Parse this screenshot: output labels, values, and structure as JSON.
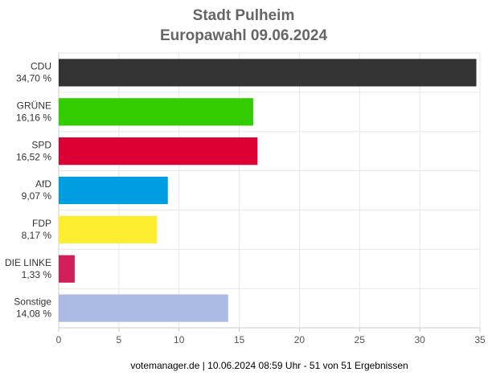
{
  "chart_data": {
    "type": "bar",
    "orientation": "horizontal",
    "title": "Stadt Pulheim",
    "subtitle": "Europawahl 09.06.2024",
    "categories": [
      "CDU",
      "GRÜNE",
      "SPD",
      "AfD",
      "FDP",
      "DIE LINKE",
      "Sonstige"
    ],
    "values": [
      34.7,
      16.16,
      16.52,
      9.07,
      8.17,
      1.33,
      14.08
    ],
    "value_labels": [
      "34,70 %",
      "16,16 %",
      "16,52 %",
      "9,07 %",
      "8,17 %",
      "1,33 %",
      "14,08 %"
    ],
    "colors": [
      "#333333",
      "#33cc00",
      "#dd0033",
      "#009ee0",
      "#fcee2f",
      "#d21f5a",
      "#abbbe5"
    ],
    "xlim": [
      0,
      35
    ],
    "xticks": [
      0,
      5,
      10,
      15,
      20,
      25,
      30,
      35
    ],
    "grid": true,
    "footer": "votemanager.de | 10.06.2024 08:59 Uhr - 51 von 51 Ergebnissen"
  }
}
